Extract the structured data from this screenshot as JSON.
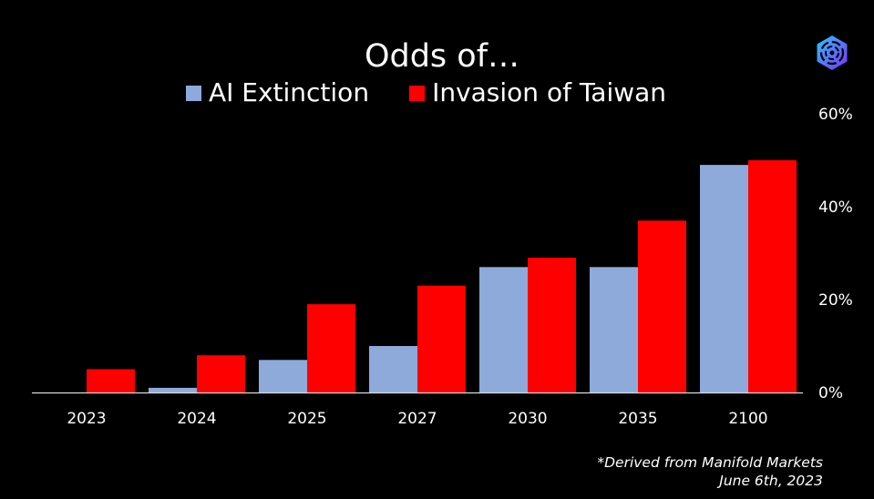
{
  "chart_data": {
    "type": "bar",
    "title": "Odds of…",
    "categories": [
      "2023",
      "2024",
      "2025",
      "2027",
      "2030",
      "2035",
      "2100"
    ],
    "series": [
      {
        "name": "AI Extinction",
        "color": "#8eaadb",
        "values": [
          0,
          1,
          7,
          10,
          27,
          27,
          49
        ]
      },
      {
        "name": "Invasion of Taiwan",
        "color": "#ff0000",
        "values": [
          5,
          8,
          19,
          23,
          29,
          37,
          50
        ]
      }
    ],
    "y_ticks": [
      "0%",
      "20%",
      "40%",
      "60%"
    ],
    "y_tick_values": [
      0,
      20,
      40,
      60
    ],
    "ylim": [
      0,
      60
    ],
    "y_axis_position": "right",
    "grid": false,
    "legend_position": "top-center",
    "xlabel": "",
    "ylabel": ""
  },
  "footnote": {
    "line1": "*Derived from Manifold Markets",
    "line2": "June 6th, 2023"
  },
  "logo": {
    "icon": "hexagon-vortex-icon",
    "colors": [
      "#7b2ff7",
      "#2ec5ff"
    ]
  }
}
